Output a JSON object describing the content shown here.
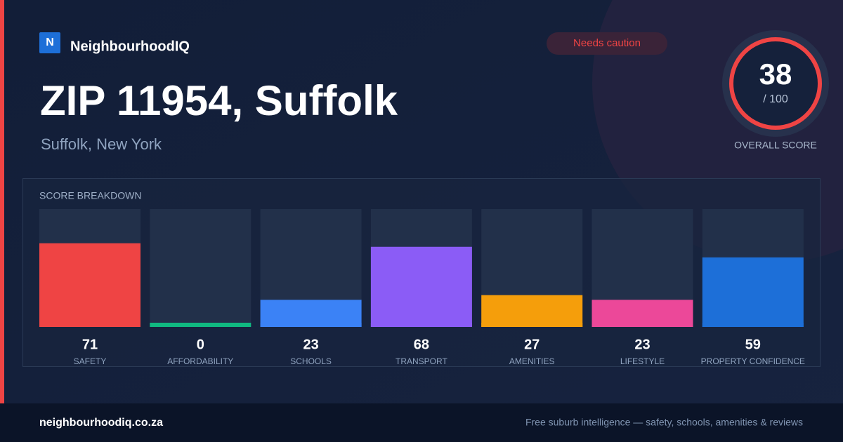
{
  "header": {
    "logo": "N",
    "brand": "NeighbourhoodIQ",
    "badge": "Needs caution"
  },
  "title": "ZIP 11954, Suffolk",
  "subtitle": "Suffolk, New York",
  "overall": {
    "score": 38,
    "out_of": "/ 100",
    "label": "OVERALL SCORE"
  },
  "chart_data": {
    "type": "bar",
    "title": "SCORE BREAKDOWN",
    "categories": [
      "SAFETY",
      "AFFORDABILITY",
      "SCHOOLS",
      "TRANSPORT",
      "AMENITIES",
      "LIFESTYLE",
      "PROPERTY CONFIDENCE"
    ],
    "values": [
      71,
      0,
      23,
      68,
      27,
      23,
      59
    ],
    "colors": [
      "#ef4444",
      "#10b981",
      "#3b82f6",
      "#8b5cf6",
      "#f59e0b",
      "#ec4899",
      "#1d6fd8"
    ],
    "ylim": [
      0,
      100
    ]
  },
  "footer": {
    "site": "neighbourhoodiq.co.za",
    "tagline": "Free suburb intelligence — safety, schools, amenities & reviews"
  }
}
